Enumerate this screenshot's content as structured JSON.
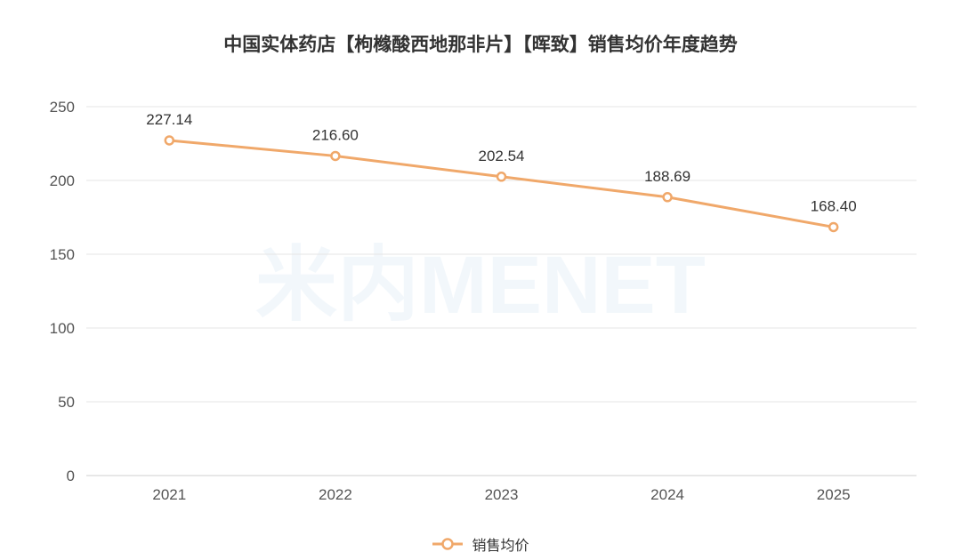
{
  "title": "中国实体药店【枸橼酸西地那非片】【晖致】销售均价年度趋势",
  "watermark": "米内MENET",
  "chart_data": {
    "type": "line",
    "title": "中国实体药店【枸橼酸西地那非片】【晖致】销售均价年度趋势",
    "categories": [
      "2021",
      "2022",
      "2023",
      "2024",
      "2025"
    ],
    "series": [
      {
        "name": "销售均价",
        "values": [
          227.14,
          216.6,
          202.54,
          188.69,
          168.4
        ],
        "color": "#F0A86A"
      }
    ],
    "data_labels": [
      "227.14",
      "216.60",
      "202.54",
      "188.69",
      "168.40"
    ],
    "y_ticks": [
      "0",
      "50",
      "100",
      "150",
      "200",
      "250"
    ],
    "ylim": [
      0,
      250
    ],
    "grid": true,
    "legend_position": "bottom-center",
    "xlabel": "",
    "ylabel": ""
  },
  "legend": {
    "label": "销售均价"
  }
}
